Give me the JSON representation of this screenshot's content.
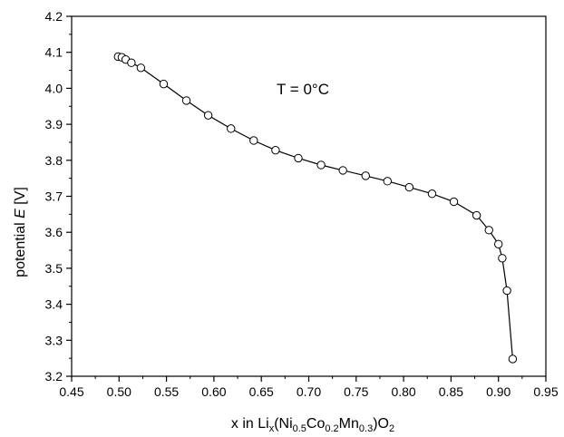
{
  "chart_data": {
    "type": "scatter",
    "connected": true,
    "marker": "open-circle",
    "xlabel": {
      "prefix": "x in Li",
      "sub1": "x",
      "mid1": "(Ni",
      "sub2": "0.5",
      "mid2": "Co",
      "sub3": "0.2",
      "mid3": "Mn",
      "sub4": "0.3",
      "mid4": ")O",
      "sub5": "2"
    },
    "ylabel": {
      "prefix": "potential ",
      "italic": "E",
      "suffix": " [V]"
    },
    "annotation": "T = 0°C",
    "xlim": [
      0.45,
      0.95
    ],
    "ylim": [
      3.2,
      4.2
    ],
    "x_ticks": [
      "0.45",
      "0.50",
      "0.55",
      "0.60",
      "0.65",
      "0.70",
      "0.75",
      "0.80",
      "0.85",
      "0.90",
      "0.95"
    ],
    "y_ticks": [
      "3.2",
      "3.3",
      "3.4",
      "3.5",
      "3.6",
      "3.7",
      "3.8",
      "3.9",
      "4.0",
      "4.1",
      "4.2"
    ],
    "grid": false,
    "series": [
      {
        "points": [
          [
            0.499,
            4.088
          ],
          [
            0.503,
            4.086
          ],
          [
            0.507,
            4.08
          ],
          [
            0.513,
            4.071
          ],
          [
            0.523,
            4.057
          ],
          [
            0.547,
            4.012
          ],
          [
            0.571,
            3.966
          ],
          [
            0.594,
            3.925
          ],
          [
            0.618,
            3.888
          ],
          [
            0.642,
            3.855
          ],
          [
            0.665,
            3.828
          ],
          [
            0.689,
            3.806
          ],
          [
            0.713,
            3.787
          ],
          [
            0.736,
            3.772
          ],
          [
            0.76,
            3.757
          ],
          [
            0.783,
            3.742
          ],
          [
            0.806,
            3.725
          ],
          [
            0.83,
            3.707
          ],
          [
            0.853,
            3.685
          ],
          [
            0.877,
            3.647
          ],
          [
            0.89,
            3.606
          ],
          [
            0.9,
            3.567
          ],
          [
            0.904,
            3.528
          ],
          [
            0.909,
            3.438
          ],
          [
            0.915,
            3.248
          ]
        ]
      }
    ]
  }
}
